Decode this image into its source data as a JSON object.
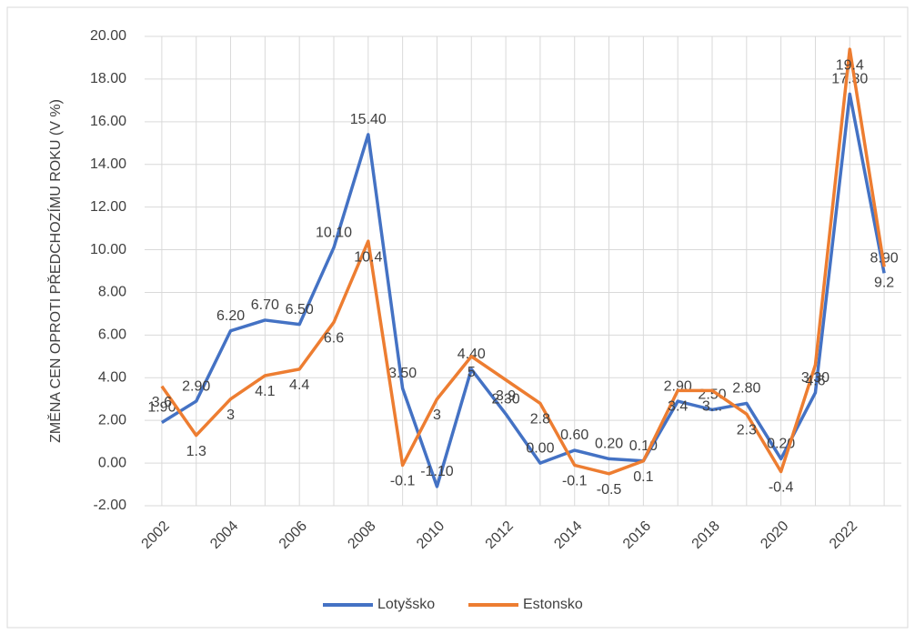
{
  "chart_data": {
    "type": "line",
    "y_label": "ZMĚNA CEN OPROTI PŘEDCHOZÍMU ROKU (V %)",
    "categories": [
      "2002",
      null,
      "2004",
      null,
      "2006",
      null,
      "2008",
      null,
      "2010",
      null,
      "2012",
      null,
      "2014",
      null,
      "2016",
      null,
      "2018",
      null,
      "2020",
      null,
      "2022",
      null
    ],
    "series": [
      {
        "name": "Lotyšsko",
        "color": "#4472c4",
        "values": [
          1.9,
          2.9,
          6.2,
          6.7,
          6.5,
          10.1,
          15.4,
          3.5,
          -1.1,
          4.4,
          2.3,
          0.0,
          0.6,
          0.2,
          0.1,
          2.9,
          2.5,
          2.8,
          0.2,
          3.3,
          17.3,
          8.9
        ],
        "value_labels": [
          "1.90",
          "2.90",
          "6.20",
          "6.70",
          "6.50",
          "10.10",
          "15.40",
          "3.50",
          "-1.10",
          "4.40",
          "2.30",
          "0.00",
          "0.60",
          "0.20",
          "0.10",
          "2.90",
          "2.50",
          "2.80",
          "0.20",
          "3.30",
          "17.30",
          "8.90"
        ]
      },
      {
        "name": "Estonsko",
        "color": "#ed7d31",
        "values": [
          3.6,
          1.3,
          3,
          4.1,
          4.4,
          6.6,
          10.4,
          -0.1,
          3,
          5,
          3.9,
          2.8,
          -0.1,
          -0.5,
          0.1,
          3.4,
          3.4,
          2.3,
          -0.4,
          4.6,
          19.4,
          9.2
        ],
        "value_labels": [
          "3.6",
          "1.3",
          "3",
          "4.1",
          "4.4",
          "6.6",
          "10.4",
          "-0.1",
          "3",
          "5",
          "3.9",
          "2.8",
          "-0.1",
          "-0.5",
          "0.1",
          "3.4",
          "3...",
          "2.3",
          "-0.4",
          "4.6",
          "19.4",
          "9.2"
        ]
      }
    ],
    "ylim": [
      -2,
      20
    ],
    "yticks": [
      {
        "value": -2,
        "label": "-2.00"
      },
      {
        "value": 0,
        "label": "0.00"
      },
      {
        "value": 2,
        "label": "2.00"
      },
      {
        "value": 4,
        "label": "4.00"
      },
      {
        "value": 6,
        "label": "6.00"
      },
      {
        "value": 8,
        "label": "8.00"
      },
      {
        "value": 10,
        "label": "10.00"
      },
      {
        "value": 12,
        "label": "12.00"
      },
      {
        "value": 14,
        "label": "14.00"
      },
      {
        "value": 16,
        "label": "16.00"
      },
      {
        "value": 18,
        "label": "18.00"
      },
      {
        "value": 20,
        "label": "20.00"
      }
    ],
    "grid": true,
    "legend": "bottom"
  }
}
